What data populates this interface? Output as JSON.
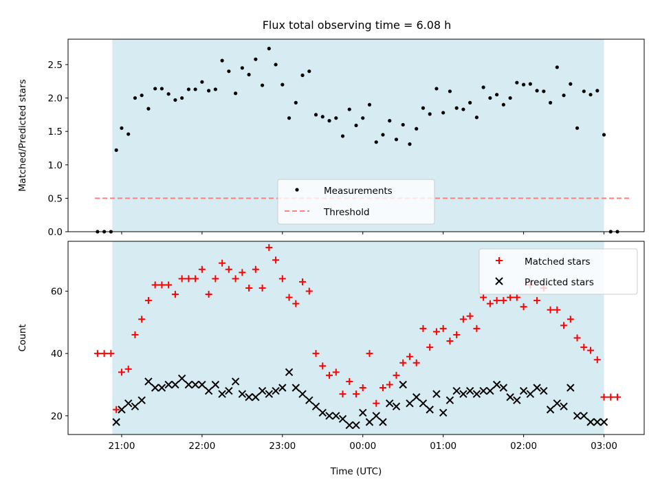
{
  "title": "Flux total observing time = 6.08 h",
  "shade_color": "#add8e6",
  "chart_data": [
    {
      "type": "scatter",
      "ylabel": "Matched/Predicted stars",
      "xlim": [
        "20:20",
        "03:30"
      ],
      "ylim": [
        0,
        2.88
      ],
      "yticks": [
        "0.0",
        "0.5",
        "1.0",
        "1.5",
        "2.0",
        "2.5"
      ],
      "shaded_interval": [
        "20:53",
        "03:00"
      ],
      "legend": {
        "placement": "lower-center",
        "entries": [
          "Measurements",
          "Threshold"
        ]
      },
      "threshold": {
        "name": "Threshold",
        "value": 0.5,
        "x_range": [
          "20:40",
          "03:20"
        ],
        "color": "#ff7f7f",
        "style": "dashed"
      },
      "series": [
        {
          "name": "Measurements",
          "color": "#000000",
          "marker": "dot",
          "x": [
            "20:42",
            "20:47",
            "20:52",
            "20:56",
            "21:00",
            "21:05",
            "21:10",
            "21:15",
            "21:20",
            "21:25",
            "21:30",
            "21:35",
            "21:40",
            "21:45",
            "21:50",
            "21:55",
            "22:00",
            "22:05",
            "22:10",
            "22:15",
            "22:20",
            "22:25",
            "22:30",
            "22:35",
            "22:40",
            "22:45",
            "22:50",
            "22:55",
            "23:00",
            "23:05",
            "23:10",
            "23:15",
            "23:20",
            "23:25",
            "23:30",
            "23:35",
            "23:40",
            "23:45",
            "23:50",
            "23:55",
            "00:00",
            "00:05",
            "00:10",
            "00:15",
            "00:20",
            "00:25",
            "00:30",
            "00:35",
            "00:40",
            "00:45",
            "00:50",
            "00:55",
            "01:00",
            "01:05",
            "01:10",
            "01:15",
            "01:20",
            "01:25",
            "01:30",
            "01:35",
            "01:40",
            "01:45",
            "01:50",
            "01:55",
            "02:00",
            "02:05",
            "02:10",
            "02:15",
            "02:20",
            "02:25",
            "02:30",
            "02:35",
            "02:40",
            "02:45",
            "02:50",
            "02:55",
            "03:00",
            "03:05",
            "03:10"
          ],
          "y": [
            0,
            0,
            0,
            1.22,
            1.55,
            1.46,
            2.0,
            2.04,
            1.84,
            2.14,
            2.14,
            2.06,
            1.97,
            2.0,
            2.13,
            2.13,
            2.24,
            2.11,
            2.13,
            2.56,
            2.4,
            2.07,
            2.45,
            2.35,
            2.58,
            2.19,
            2.74,
            2.5,
            2.2,
            1.7,
            1.93,
            2.34,
            2.4,
            1.75,
            1.72,
            1.66,
            1.7,
            1.43,
            1.83,
            1.59,
            1.7,
            1.9,
            1.34,
            1.45,
            1.66,
            1.38,
            1.6,
            1.31,
            1.54,
            1.85,
            1.76,
            2.14,
            1.78,
            2.1,
            1.85,
            1.83,
            1.93,
            1.71,
            2.16,
            2.0,
            2.05,
            1.9,
            2.0,
            2.23,
            2.2,
            2.21,
            2.11,
            2.1,
            1.93,
            2.46,
            2.04,
            2.21,
            1.55,
            2.1,
            2.05,
            2.11,
            1.45,
            0,
            0
          ]
        }
      ]
    },
    {
      "type": "scatter",
      "xlabel": "Time (UTC)",
      "ylabel": "Count",
      "xlim": [
        "20:20",
        "03:30"
      ],
      "ylim": [
        14,
        76
      ],
      "xticks": [
        "21:00",
        "22:00",
        "23:00",
        "00:00",
        "01:00",
        "02:00",
        "03:00"
      ],
      "yticks": [
        "20",
        "40",
        "60"
      ],
      "shaded_interval": [
        "20:53",
        "03:00"
      ],
      "legend": {
        "placement": "upper-right",
        "entries": [
          "Matched stars",
          "Predicted stars"
        ]
      },
      "series": [
        {
          "name": "Matched stars",
          "color": "#ff0000",
          "marker": "plus",
          "x": [
            "20:42",
            "20:47",
            "20:52",
            "20:56",
            "21:00",
            "21:05",
            "21:10",
            "21:15",
            "21:20",
            "21:25",
            "21:30",
            "21:35",
            "21:40",
            "21:45",
            "21:50",
            "21:55",
            "22:00",
            "22:05",
            "22:10",
            "22:15",
            "22:20",
            "22:25",
            "22:30",
            "22:35",
            "22:40",
            "22:45",
            "22:50",
            "22:55",
            "23:00",
            "23:05",
            "23:10",
            "23:15",
            "23:20",
            "23:25",
            "23:30",
            "23:35",
            "23:40",
            "23:45",
            "23:50",
            "23:55",
            "00:00",
            "00:05",
            "00:10",
            "00:15",
            "00:20",
            "00:25",
            "00:30",
            "00:35",
            "00:40",
            "00:45",
            "00:50",
            "00:55",
            "01:00",
            "01:05",
            "01:10",
            "01:15",
            "01:20",
            "01:25",
            "01:30",
            "01:35",
            "01:40",
            "01:45",
            "01:50",
            "01:55",
            "02:00",
            "02:05",
            "02:10",
            "02:15",
            "02:20",
            "02:25",
            "02:30",
            "02:35",
            "02:40",
            "02:45",
            "02:50",
            "02:55",
            "03:00",
            "03:05",
            "03:10"
          ],
          "y": [
            40,
            40,
            40,
            22,
            34,
            35,
            46,
            51,
            57,
            62,
            62,
            62,
            59,
            64,
            64,
            64,
            67,
            59,
            64,
            69,
            67,
            64,
            66,
            61,
            67,
            61,
            74,
            70,
            64,
            58,
            56,
            63,
            60,
            40,
            36,
            33,
            34,
            27,
            31,
            27,
            29,
            40,
            24,
            29,
            30,
            33,
            37,
            39,
            37,
            48,
            42,
            47,
            48,
            44,
            46,
            51,
            52,
            48,
            58,
            56,
            57,
            57,
            58,
            58,
            55,
            62,
            57,
            61,
            54,
            54,
            49,
            51,
            45,
            42,
            41,
            38,
            26,
            26,
            26
          ]
        },
        {
          "name": "Predicted stars",
          "color": "#000000",
          "marker": "x",
          "x": [
            "20:56",
            "21:00",
            "21:05",
            "21:10",
            "21:15",
            "21:20",
            "21:25",
            "21:30",
            "21:35",
            "21:40",
            "21:45",
            "21:50",
            "21:55",
            "22:00",
            "22:05",
            "22:10",
            "22:15",
            "22:20",
            "22:25",
            "22:30",
            "22:35",
            "22:40",
            "22:45",
            "22:50",
            "22:55",
            "23:00",
            "23:05",
            "23:10",
            "23:15",
            "23:20",
            "23:25",
            "23:30",
            "23:35",
            "23:40",
            "23:45",
            "23:50",
            "23:55",
            "00:00",
            "00:05",
            "00:10",
            "00:15",
            "00:20",
            "00:25",
            "00:30",
            "00:35",
            "00:40",
            "00:45",
            "00:50",
            "00:55",
            "01:00",
            "01:05",
            "01:10",
            "01:15",
            "01:20",
            "01:25",
            "01:30",
            "01:35",
            "01:40",
            "01:45",
            "01:50",
            "01:55",
            "02:00",
            "02:05",
            "02:10",
            "02:15",
            "02:20",
            "02:25",
            "02:30",
            "02:35",
            "02:40",
            "02:45",
            "02:50",
            "02:55",
            "03:00"
          ],
          "y": [
            18,
            22,
            24,
            23,
            25,
            31,
            29,
            29,
            30,
            30,
            32,
            30,
            30,
            30,
            28,
            30,
            27,
            28,
            31,
            27,
            26,
            26,
            28,
            27,
            28,
            29,
            34,
            29,
            27,
            25,
            23,
            21,
            20,
            20,
            19,
            17,
            17,
            21,
            18,
            20,
            18,
            24,
            23,
            30,
            24,
            26,
            24,
            22,
            27,
            21,
            25,
            28,
            27,
            28,
            27,
            28,
            28,
            30,
            29,
            26,
            25,
            28,
            27,
            29,
            28,
            22,
            24,
            23,
            29,
            20,
            20,
            18,
            18,
            18
          ]
        }
      ]
    }
  ]
}
